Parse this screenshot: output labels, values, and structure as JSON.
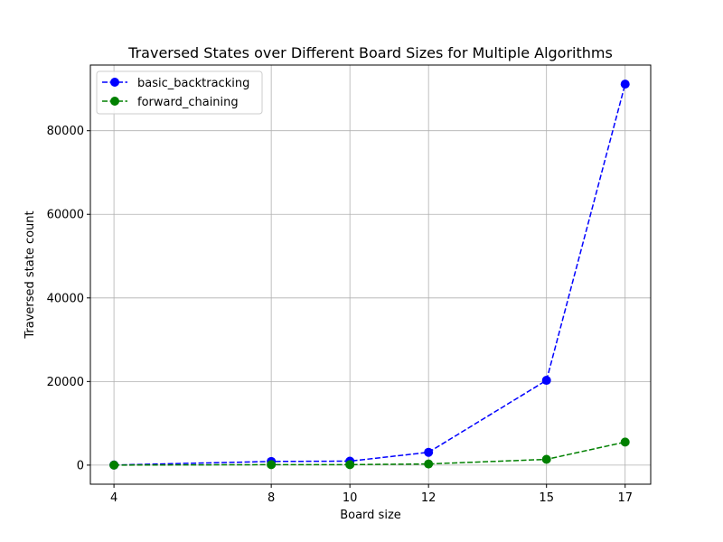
{
  "chart_data": {
    "type": "line",
    "title": "Traversed States over Different Board Sizes for Multiple Algorithms",
    "xlabel": "Board size",
    "ylabel": "Traversed state count",
    "x": [
      4,
      8,
      10,
      12,
      15,
      17
    ],
    "xticks": [
      4,
      8,
      10,
      12,
      15,
      17
    ],
    "yticks": [
      0,
      20000,
      40000,
      60000,
      80000
    ],
    "xlim": [
      3.4,
      17.65
    ],
    "ylim": [
      -4560,
      95710
    ],
    "grid": true,
    "legend_position": "top-left",
    "series": [
      {
        "name": "basic_backtracking",
        "color": "#0000ff",
        "linestyle": "dashed",
        "marker": "circle",
        "values": [
          26,
          876,
          954,
          3066,
          20280,
          91150
        ]
      },
      {
        "name": "forward_chaining",
        "color": "#008000",
        "linestyle": "dashed",
        "marker": "circle",
        "values": [
          8,
          110,
          120,
          280,
          1380,
          5520
        ]
      }
    ]
  }
}
